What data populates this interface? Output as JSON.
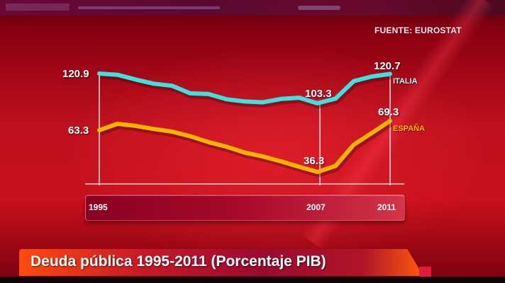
{
  "header": {
    "source": "FUENTE: EUROSTAT"
  },
  "title": "Deuda pública 1995-2011 (Porcentaje PIB)",
  "colors": {
    "italia": "#3fe0e0",
    "espana": "#f7b500",
    "background": "#c0101e",
    "axis_bar": "#a80a2a",
    "title_bar": "#ff4a10"
  },
  "labels": {
    "italia_1995": "120.9",
    "italia_2007": "103.3",
    "italia_2011": "120.7",
    "espana_1995": "63.3",
    "espana_2007": "36.3",
    "espana_2011": "69.3",
    "italia_name": "ITALIA",
    "espana_name": "ESPAÑA"
  },
  "axis": {
    "ticks": [
      "1995",
      "2007",
      "2011"
    ]
  },
  "chart_data": {
    "type": "line",
    "title": "Deuda pública 1995-2011 (Porcentaje PIB)",
    "subtitle": "FUENTE: EUROSTAT",
    "xlabel": "",
    "ylabel": "Porcentaje PIB",
    "x": [
      1995,
      1996,
      1997,
      1998,
      1999,
      2000,
      2001,
      2002,
      2003,
      2004,
      2005,
      2006,
      2007,
      2008,
      2009,
      2010,
      2011
    ],
    "x_tick_labels": [
      "1995",
      "2007",
      "2011"
    ],
    "series": [
      {
        "name": "ITALIA",
        "color": "#3fe0e0",
        "values": [
          120.9,
          120.2,
          117.4,
          114.9,
          113.7,
          109.2,
          108.8,
          105.7,
          104.4,
          103.9,
          105.9,
          106.6,
          103.3,
          106.1,
          116.4,
          119.2,
          120.7
        ]
      },
      {
        "name": "ESPAÑA",
        "color": "#f7b500",
        "values": [
          63.3,
          67.4,
          66.1,
          64.1,
          62.4,
          59.4,
          55.6,
          52.6,
          48.8,
          46.3,
          43.1,
          39.6,
          36.3,
          40.2,
          53.9,
          61.5,
          69.3
        ]
      }
    ],
    "annotations": [
      {
        "series": "ITALIA",
        "x": 1995,
        "text": "120.9"
      },
      {
        "series": "ITALIA",
        "x": 2007,
        "text": "103.3"
      },
      {
        "series": "ITALIA",
        "x": 2011,
        "text": "120.7"
      },
      {
        "series": "ESPAÑA",
        "x": 1995,
        "text": "63.3"
      },
      {
        "series": "ESPAÑA",
        "x": 2007,
        "text": "36.3"
      },
      {
        "series": "ESPAÑA",
        "x": 2011,
        "text": "69.3"
      }
    ],
    "ylim": [
      30,
      125
    ],
    "grid": false,
    "legend_position": "inline-right"
  }
}
